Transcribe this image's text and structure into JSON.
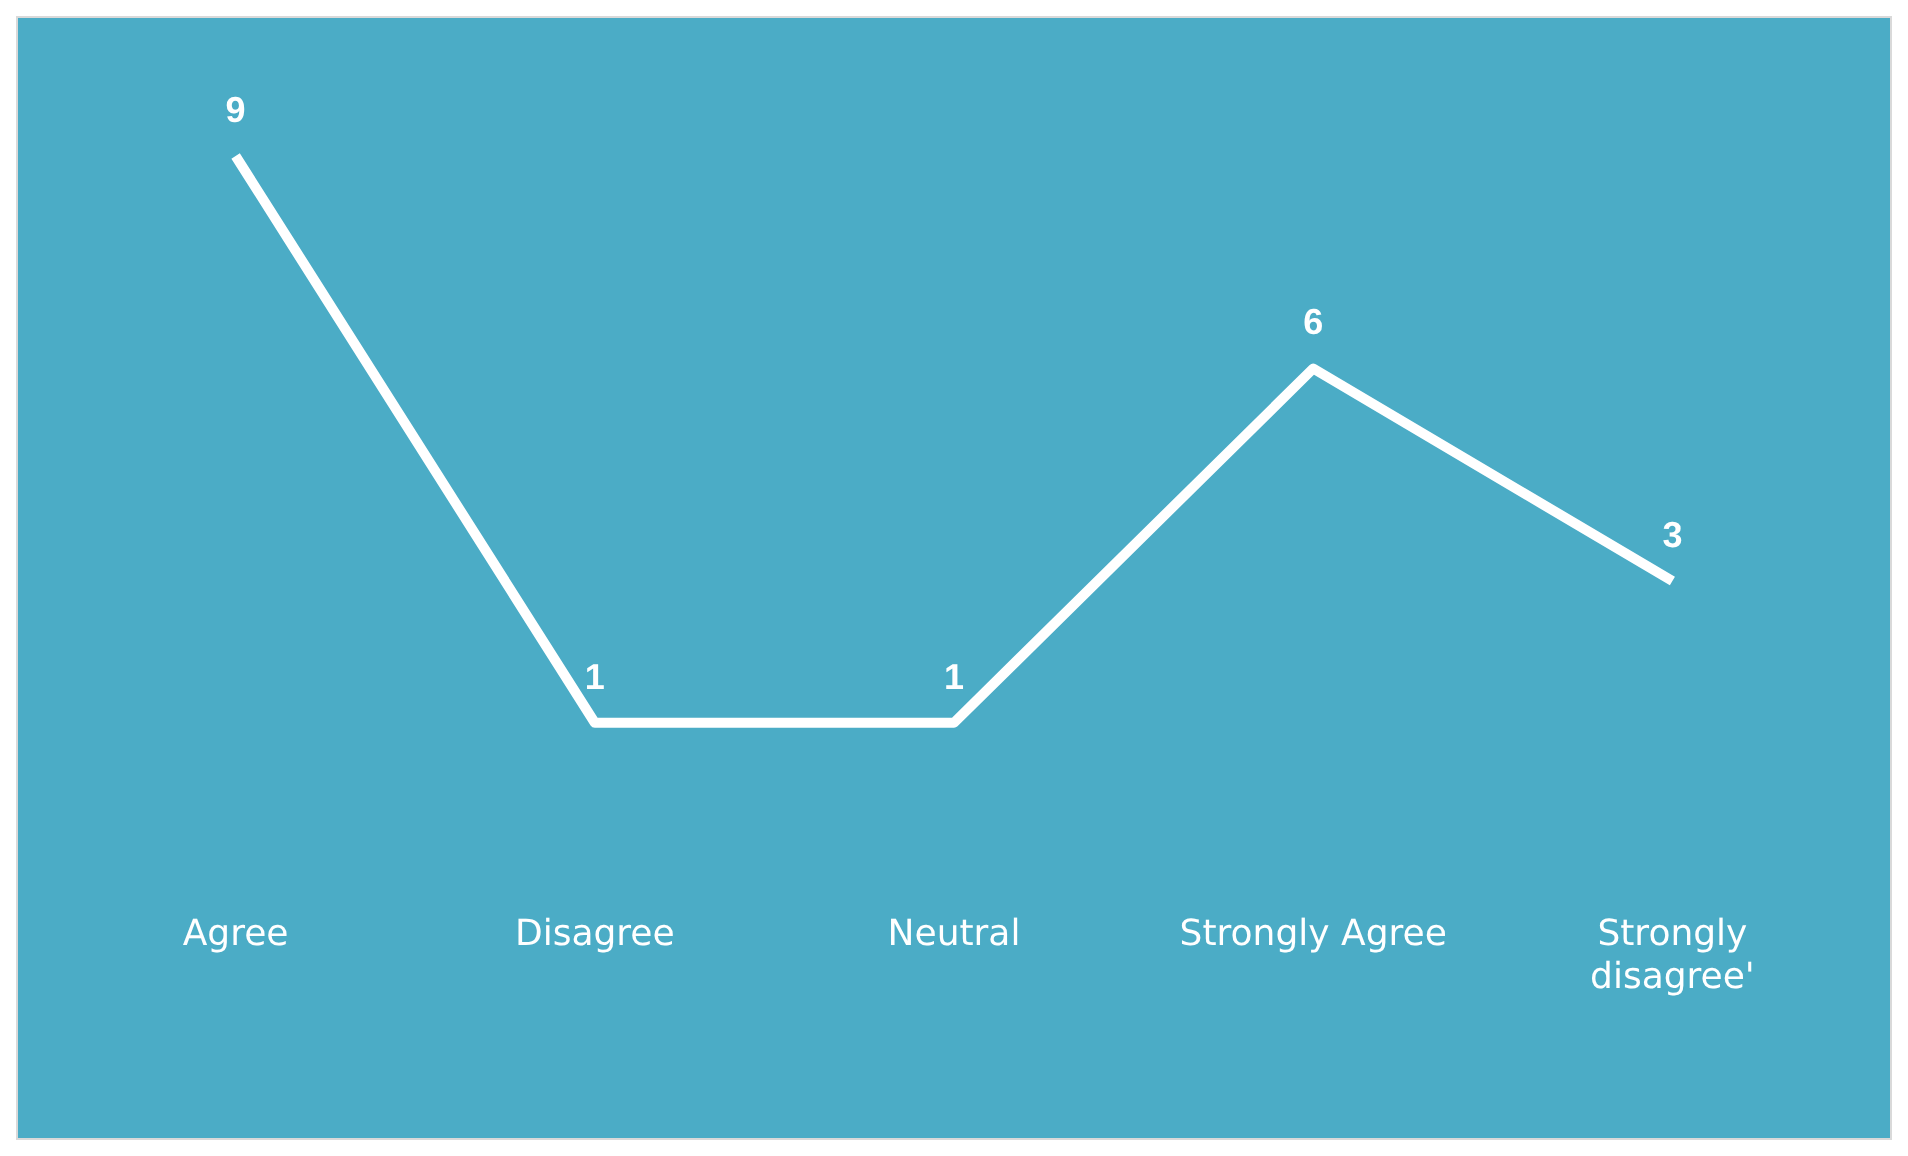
{
  "chart_data": {
    "type": "line",
    "categories": [
      "Agree",
      "Disagree",
      "Neutral",
      "Strongly Agree",
      "Strongly disagree'"
    ],
    "series": [
      {
        "color": "#ffffff",
        "values": [
          9,
          1,
          1,
          6,
          3
        ]
      }
    ],
    "data_labels": true,
    "marker": "none",
    "grid": false,
    "legend": false
  }
}
